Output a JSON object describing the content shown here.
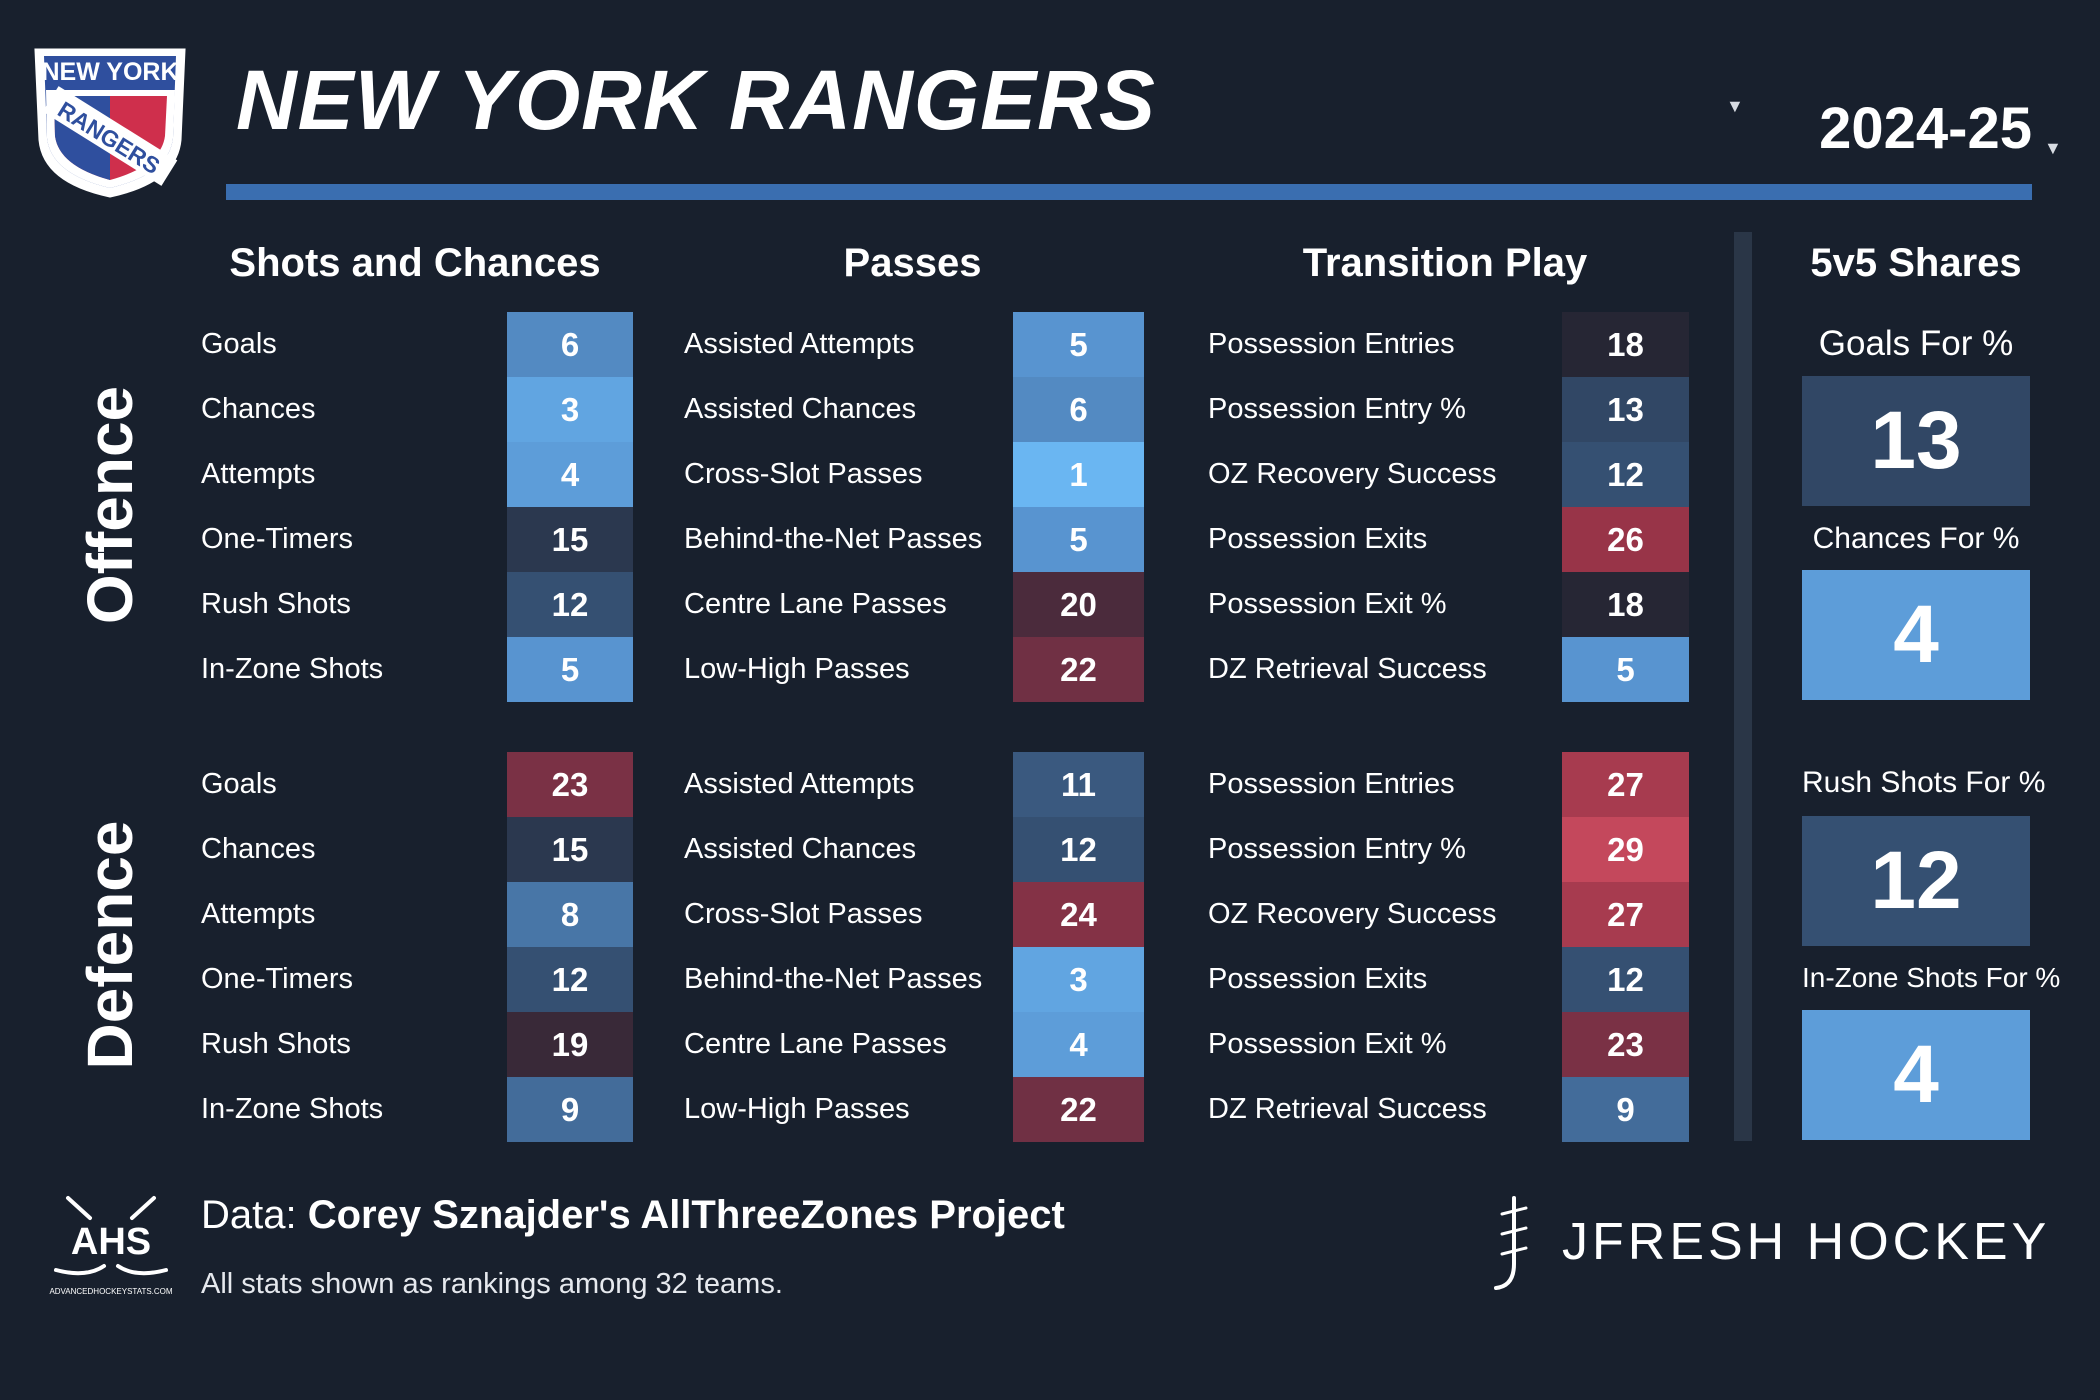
{
  "header": {
    "team_name": "NEW YORK RANGERS",
    "season": "2024-25",
    "logo_text_top": "NEW YORK",
    "logo_text_band": "RANGERS",
    "colors": {
      "rule": "#3a6eb0",
      "background": "#18202d"
    }
  },
  "columns": {
    "shots": "Shots and Chances",
    "passes": "Passes",
    "transition": "Transition Play",
    "shares": "5v5 Shares"
  },
  "sections": {
    "offence": "Offence",
    "defence": "Defence"
  },
  "offence": {
    "shots": [
      {
        "label": "Goals",
        "rank": 6
      },
      {
        "label": "Chances",
        "rank": 3
      },
      {
        "label": "Attempts",
        "rank": 4
      },
      {
        "label": "One-Timers",
        "rank": 15
      },
      {
        "label": "Rush Shots",
        "rank": 12
      },
      {
        "label": "In-Zone Shots",
        "rank": 5
      }
    ],
    "passes": [
      {
        "label": "Assisted Attempts",
        "rank": 5
      },
      {
        "label": "Assisted Chances",
        "rank": 6
      },
      {
        "label": "Cross-Slot Passes",
        "rank": 1
      },
      {
        "label": "Behind-the-Net Passes",
        "rank": 5
      },
      {
        "label": "Centre Lane Passes",
        "rank": 20
      },
      {
        "label": "Low-High Passes",
        "rank": 22
      }
    ],
    "transition": [
      {
        "label": "Possession Entries",
        "rank": 18
      },
      {
        "label": "Possession Entry %",
        "rank": 13
      },
      {
        "label": "OZ Recovery Success",
        "rank": 12
      },
      {
        "label": "Possession Exits",
        "rank": 26
      },
      {
        "label": "Possession Exit %",
        "rank": 18
      },
      {
        "label": "DZ Retrieval Success",
        "rank": 5
      }
    ]
  },
  "defence": {
    "shots": [
      {
        "label": "Goals",
        "rank": 23
      },
      {
        "label": "Chances",
        "rank": 15
      },
      {
        "label": "Attempts",
        "rank": 8
      },
      {
        "label": "One-Timers",
        "rank": 12
      },
      {
        "label": "Rush Shots",
        "rank": 19
      },
      {
        "label": "In-Zone Shots",
        "rank": 9
      }
    ],
    "passes": [
      {
        "label": "Assisted Attempts",
        "rank": 11
      },
      {
        "label": "Assisted Chances",
        "rank": 12
      },
      {
        "label": "Cross-Slot Passes",
        "rank": 24
      },
      {
        "label": "Behind-the-Net Passes",
        "rank": 3
      },
      {
        "label": "Centre Lane Passes",
        "rank": 4
      },
      {
        "label": "Low-High Passes",
        "rank": 22
      }
    ],
    "transition": [
      {
        "label": "Possession Entries",
        "rank": 27
      },
      {
        "label": "Possession Entry %",
        "rank": 29
      },
      {
        "label": "OZ Recovery Success",
        "rank": 27
      },
      {
        "label": "Possession Exits",
        "rank": 12
      },
      {
        "label": "Possession Exit %",
        "rank": 23
      },
      {
        "label": "DZ Retrieval Success",
        "rank": 9
      }
    ]
  },
  "shares": [
    {
      "label": "Goals For %",
      "rank": 13
    },
    {
      "label": "Chances For %",
      "rank": 4
    },
    {
      "label": "Rush Shots For %",
      "rank": 12
    },
    {
      "label": "In-Zone Shots For %",
      "rank": 4
    }
  ],
  "footer": {
    "data_prefix": "Data: ",
    "data_source": "Corey Sznajder's AllThreeZones Project",
    "note": "All stats shown as rankings among 32 teams.",
    "ahs_text": "AHS",
    "ahs_url_text": "ADVANCEDHOCKEYSTATS.COM",
    "brand": "JFRESH HOCKEY"
  }
}
